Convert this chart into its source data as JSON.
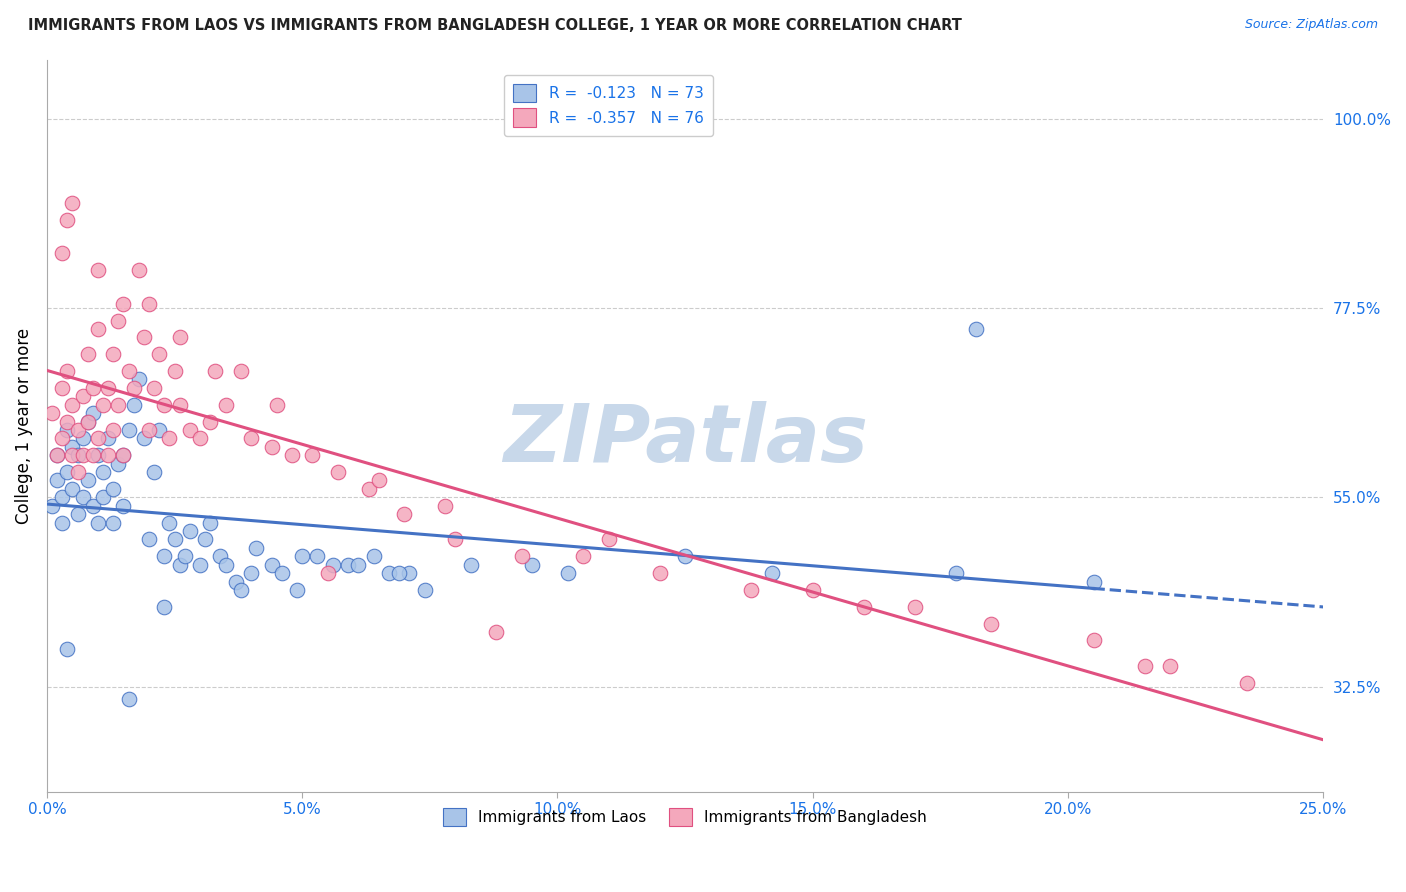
{
  "title": "IMMIGRANTS FROM LAOS VS IMMIGRANTS FROM BANGLADESH COLLEGE, 1 YEAR OR MORE CORRELATION CHART",
  "source": "Source: ZipAtlas.com",
  "ylabel_label": "College, 1 year or more",
  "legend_label1": "Immigrants from Laos",
  "legend_label2": "Immigrants from Bangladesh",
  "color_laos": "#a8c4e8",
  "color_bangladesh": "#f4a8bc",
  "color_line_laos": "#4472c4",
  "color_line_bangladesh": "#e05080",
  "color_axis_labels": "#1a73e8",
  "color_title": "#222222",
  "watermark": "ZIPatlas",
  "watermark_color": "#c8d8ea",
  "xmin": 0.0,
  "xmax": 25.0,
  "ymin": 20.0,
  "ymax": 107.0,
  "ytick_vals": [
    32.5,
    55.0,
    77.5,
    100.0
  ],
  "ytick_labels": [
    "32.5%",
    "55.0%",
    "77.5%",
    "100.0%"
  ],
  "xtick_vals": [
    0,
    5,
    10,
    15,
    20,
    25
  ],
  "xtick_labels": [
    "0.0%",
    "5.0%",
    "10.0%",
    "15.0%",
    "20.0%",
    "25.0%"
  ],
  "laos_R": -0.123,
  "laos_N": 73,
  "bangladesh_R": -0.357,
  "bangladesh_N": 76,
  "scatter_laos_x": [
    0.1,
    0.2,
    0.2,
    0.3,
    0.3,
    0.4,
    0.4,
    0.5,
    0.5,
    0.6,
    0.6,
    0.7,
    0.7,
    0.8,
    0.8,
    0.9,
    0.9,
    1.0,
    1.0,
    1.1,
    1.1,
    1.2,
    1.3,
    1.3,
    1.4,
    1.5,
    1.5,
    1.6,
    1.7,
    1.8,
    1.9,
    2.0,
    2.1,
    2.2,
    2.3,
    2.4,
    2.5,
    2.6,
    2.7,
    2.8,
    3.0,
    3.1,
    3.2,
    3.4,
    3.5,
    3.7,
    4.0,
    4.1,
    4.4,
    4.6,
    5.0,
    5.3,
    5.6,
    5.9,
    6.1,
    6.4,
    6.7,
    7.1,
    7.4,
    8.3,
    9.5,
    10.2,
    12.5,
    14.2,
    17.8,
    20.5,
    18.2,
    3.8,
    4.9,
    2.3,
    1.6,
    6.9,
    0.4
  ],
  "scatter_laos_y": [
    54.0,
    57.0,
    60.0,
    55.0,
    52.0,
    58.0,
    63.0,
    56.0,
    61.0,
    53.0,
    60.0,
    55.0,
    62.0,
    57.0,
    64.0,
    54.0,
    65.0,
    52.0,
    60.0,
    55.0,
    58.0,
    62.0,
    56.0,
    52.0,
    59.0,
    60.0,
    54.0,
    63.0,
    66.0,
    69.0,
    62.0,
    50.0,
    58.0,
    63.0,
    48.0,
    52.0,
    50.0,
    47.0,
    48.0,
    51.0,
    47.0,
    50.0,
    52.0,
    48.0,
    47.0,
    45.0,
    46.0,
    49.0,
    47.0,
    46.0,
    48.0,
    48.0,
    47.0,
    47.0,
    47.0,
    48.0,
    46.0,
    46.0,
    44.0,
    47.0,
    47.0,
    46.0,
    48.0,
    46.0,
    46.0,
    45.0,
    75.0,
    44.0,
    44.0,
    42.0,
    31.0,
    46.0,
    37.0
  ],
  "scatter_bangladesh_x": [
    0.1,
    0.2,
    0.3,
    0.3,
    0.4,
    0.4,
    0.5,
    0.5,
    0.6,
    0.6,
    0.7,
    0.7,
    0.8,
    0.8,
    0.9,
    0.9,
    1.0,
    1.0,
    1.1,
    1.2,
    1.2,
    1.3,
    1.3,
    1.4,
    1.5,
    1.5,
    1.6,
    1.7,
    1.8,
    1.9,
    2.0,
    2.1,
    2.2,
    2.3,
    2.4,
    2.5,
    2.6,
    2.8,
    3.0,
    3.2,
    3.5,
    3.8,
    4.0,
    4.4,
    4.8,
    5.2,
    5.7,
    6.3,
    7.0,
    8.0,
    9.3,
    10.5,
    12.0,
    13.8,
    16.0,
    18.5,
    20.5,
    22.0,
    23.5,
    0.3,
    0.4,
    0.5,
    1.0,
    1.4,
    2.0,
    2.6,
    3.3,
    4.5,
    6.5,
    7.8,
    11.0,
    15.0,
    21.5,
    5.5,
    8.8,
    17.0
  ],
  "scatter_bangladesh_y": [
    65.0,
    60.0,
    68.0,
    62.0,
    64.0,
    70.0,
    60.0,
    66.0,
    58.0,
    63.0,
    60.0,
    67.0,
    64.0,
    72.0,
    60.0,
    68.0,
    62.0,
    75.0,
    66.0,
    60.0,
    68.0,
    63.0,
    72.0,
    66.0,
    60.0,
    78.0,
    70.0,
    68.0,
    82.0,
    74.0,
    63.0,
    68.0,
    72.0,
    66.0,
    62.0,
    70.0,
    66.0,
    63.0,
    62.0,
    64.0,
    66.0,
    70.0,
    62.0,
    61.0,
    60.0,
    60.0,
    58.0,
    56.0,
    53.0,
    50.0,
    48.0,
    48.0,
    46.0,
    44.0,
    42.0,
    40.0,
    38.0,
    35.0,
    33.0,
    84.0,
    88.0,
    90.0,
    82.0,
    76.0,
    78.0,
    74.0,
    70.0,
    66.0,
    57.0,
    54.0,
    50.0,
    44.0,
    35.0,
    46.0,
    39.0,
    42.0
  ]
}
